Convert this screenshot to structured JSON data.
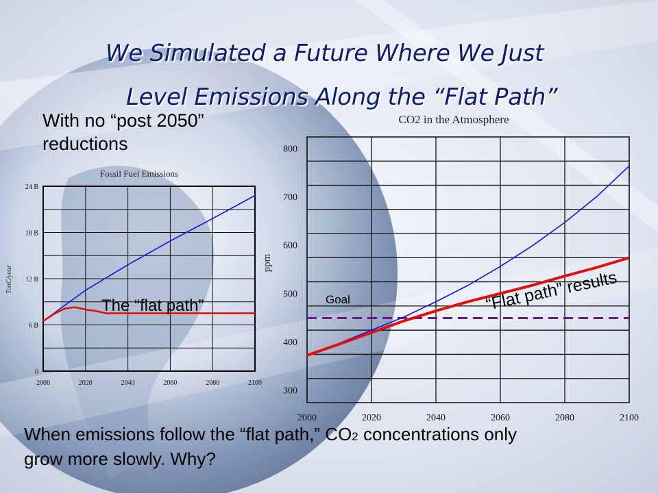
{
  "slide": {
    "title_line1": "We Simulated a Future Where We Just",
    "title_line2": "Level Emissions Along the “Flat Path”",
    "note_line1": "With no “post 2050”",
    "note_line2": "reductions",
    "caption_line1_pre": "When emissions follow the “flat path,” CO",
    "caption_sub": "2",
    "caption_line1_post": " concentrations only",
    "caption_line2": "grow more slowly. Why?"
  },
  "colors": {
    "blue_series": "#1414e0",
    "red_series": "#e01010",
    "goal_line": "#6a1a8a",
    "title": "#0d1e6c"
  },
  "chart_data": [
    {
      "type": "line",
      "title": "Fossil Fuel Emissions",
      "ylabel": "TonC/year",
      "xlabel": "",
      "x_ticks": [
        "2000",
        "2020",
        "2040",
        "2060",
        "2080",
        "2100"
      ],
      "y_ticks": [
        "0",
        "6 B",
        "12 B",
        "18 B",
        "24 B"
      ],
      "xlim": [
        2000,
        2100
      ],
      "ylim": [
        0,
        24
      ],
      "annotation": "The “flat path”",
      "series": [
        {
          "color": "#1414e0",
          "x": [
            2000,
            2020,
            2040,
            2060,
            2080,
            2100
          ],
          "y": [
            6.5,
            10.5,
            13.8,
            16.9,
            19.8,
            22.8
          ]
        },
        {
          "color": "#e01010",
          "x": [
            2000,
            2005,
            2010,
            2015,
            2020,
            2025,
            2030,
            2040,
            2060,
            2080,
            2100
          ],
          "y": [
            6.5,
            7.4,
            8.1,
            8.3,
            8.0,
            7.8,
            7.5,
            7.5,
            7.5,
            7.5,
            7.5
          ]
        }
      ]
    },
    {
      "type": "line",
      "title": "CO2 in the Atmosphere",
      "ylabel": "ppm",
      "xlabel": "",
      "x_ticks": [
        "2000",
        "2020",
        "2040",
        "2060",
        "2080",
        "2100"
      ],
      "y_ticks": [
        "300",
        "400",
        "500",
        "600",
        "700",
        "800"
      ],
      "xlim": [
        2000,
        2100
      ],
      "ylim": [
        275,
        825
      ],
      "goal_label": "Goal",
      "goal_value": 450,
      "annotation": "“Flat path” results",
      "series": [
        {
          "color": "#1414e0",
          "x": [
            2000,
            2010,
            2020,
            2030,
            2040,
            2050,
            2060,
            2070,
            2080,
            2090,
            2100
          ],
          "y": [
            373,
            398,
            425,
            452,
            484,
            518,
            557,
            600,
            648,
            702,
            765
          ]
        },
        {
          "color": "#e01010",
          "x": [
            2000,
            2010,
            2020,
            2030,
            2040,
            2050,
            2060,
            2070,
            2080,
            2090,
            2100
          ],
          "y": [
            373,
            396,
            420,
            444,
            465,
            484,
            501,
            518,
            537,
            555,
            575
          ]
        }
      ]
    }
  ]
}
